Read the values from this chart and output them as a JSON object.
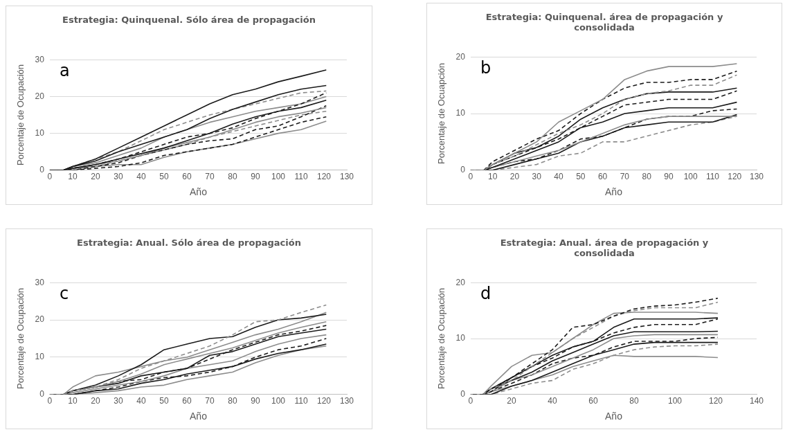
{
  "chart_data": [
    {
      "type": "line",
      "title": "Estrategia: Quinquenal. Sólo área de propagación",
      "xlabel": "Año",
      "ylabel": "Porcentaje de Ocupación",
      "annotations": [
        "a"
      ],
      "x": [
        0,
        6,
        10,
        20,
        30,
        40,
        50,
        60,
        70,
        80,
        90,
        100,
        110,
        121
      ],
      "xlim": [
        0,
        130
      ],
      "xticks": [
        0,
        10,
        20,
        30,
        40,
        50,
        60,
        70,
        80,
        90,
        100,
        110,
        120,
        130
      ],
      "ylim": [
        0,
        30
      ],
      "yticks": [
        0,
        10,
        20,
        30
      ],
      "grid": "y",
      "marker": "none",
      "series": [
        {
          "color": "#1a1a1a",
          "line_style": "solid",
          "values": [
            0,
            0,
            1,
            3,
            6,
            9,
            12,
            15,
            18,
            20.5,
            22,
            24,
            25.5,
            27.2
          ]
        },
        {
          "color": "#1a1a1a",
          "line_style": "solid",
          "values": [
            0,
            0,
            1,
            2.5,
            5,
            7,
            9,
            11,
            14,
            16.5,
            18.5,
            20.5,
            22,
            23
          ]
        },
        {
          "color": "#8c8c8c",
          "line_style": "dashed",
          "values": [
            0,
            0,
            1,
            3,
            5,
            8,
            11,
            13,
            15,
            16.5,
            18,
            19.5,
            21,
            21.5
          ]
        },
        {
          "color": "#1a1a1a",
          "line_style": "dashed",
          "values": [
            0,
            0,
            0.5,
            1.5,
            3,
            5,
            7,
            9,
            10,
            11.5,
            14,
            16,
            18,
            21
          ]
        },
        {
          "color": "#8c8c8c",
          "line_style": "solid",
          "values": [
            0,
            0,
            1,
            2,
            4,
            6,
            9,
            11,
            13,
            14.5,
            16,
            17,
            18,
            20
          ]
        },
        {
          "color": "#1a1a1a",
          "line_style": "solid",
          "values": [
            0,
            0,
            0.5,
            1.5,
            3,
            4.5,
            6,
            8,
            10,
            12.5,
            14.5,
            16,
            17,
            19
          ]
        },
        {
          "color": "#8c8c8c",
          "line_style": "solid",
          "values": [
            0,
            0,
            0.5,
            1.5,
            2.5,
            4,
            6,
            7.5,
            9,
            11,
            13,
            14.5,
            15.5,
            17
          ]
        },
        {
          "color": "#1a1a1a",
          "line_style": "dashed",
          "values": [
            0,
            0,
            0,
            1,
            2,
            4,
            5.5,
            7,
            8,
            8.5,
            11,
            12,
            14.5,
            17.5
          ]
        },
        {
          "color": "#8c8c8c",
          "line_style": "dashed",
          "values": [
            0,
            0,
            0.5,
            1,
            2.5,
            4,
            5.5,
            7,
            9,
            10.5,
            12,
            13.5,
            15,
            16
          ]
        },
        {
          "color": "#1a1a1a",
          "line_style": "dashed",
          "values": [
            0,
            0,
            0,
            0.5,
            1,
            2,
            4,
            5,
            6,
            7,
            9,
            11,
            13,
            14.5
          ]
        },
        {
          "color": "#8c8c8c",
          "line_style": "solid",
          "values": [
            0,
            0,
            0.5,
            1,
            1.5,
            1.5,
            3.5,
            5,
            6,
            7,
            8.5,
            10,
            11,
            13.3
          ]
        }
      ]
    },
    {
      "type": "line",
      "title": "Estrategia: Quinquenal. área de propagación y consolidada",
      "xlabel": "Año",
      "ylabel": "Porcentaje de Ocuapción",
      "annotations": [
        "b"
      ],
      "x": [
        0,
        6,
        10,
        20,
        30,
        40,
        50,
        60,
        70,
        80,
        90,
        100,
        110,
        121
      ],
      "xlim": [
        0,
        130
      ],
      "xticks": [
        0,
        10,
        20,
        30,
        40,
        50,
        60,
        70,
        80,
        90,
        100,
        110,
        120,
        130
      ],
      "ylim": [
        0,
        20
      ],
      "yticks": [
        0,
        10,
        20
      ],
      "grid": "y",
      "marker": "none",
      "series": [
        {
          "color": "#8c8c8c",
          "line_style": "solid",
          "values": [
            0,
            0,
            1,
            3,
            5,
            8.5,
            10.5,
            12.5,
            16,
            17.5,
            18.3,
            18.3,
            18.3,
            18.8
          ]
        },
        {
          "color": "#1a1a1a",
          "line_style": "dashed",
          "values": [
            0,
            0,
            1.5,
            3.5,
            5.5,
            7,
            10,
            12.5,
            14.5,
            15.5,
            15.5,
            16,
            16,
            17.5
          ]
        },
        {
          "color": "#8c8c8c",
          "line_style": "dashed",
          "values": [
            0,
            0,
            1,
            2.5,
            4.5,
            6.5,
            8,
            10,
            12.5,
            13.5,
            14,
            15,
            15,
            16.8
          ]
        },
        {
          "color": "#1a1a1a",
          "line_style": "solid",
          "values": [
            0,
            0,
            1,
            3,
            4,
            6,
            9,
            11,
            12.5,
            13.5,
            13.8,
            13.8,
            13.8,
            14.5
          ]
        },
        {
          "color": "#1a1a1a",
          "line_style": "dashed",
          "values": [
            0,
            0,
            1,
            2.5,
            4,
            5.5,
            7.5,
            9.5,
            11.5,
            12,
            12.5,
            12.5,
            12.5,
            14
          ]
        },
        {
          "color": "#1a1a1a",
          "line_style": "solid",
          "values": [
            0,
            0,
            0.5,
            2,
            3.5,
            5,
            7.5,
            8.5,
            10,
            10.5,
            11,
            11,
            11,
            12
          ]
        },
        {
          "color": "#8c8c8c",
          "line_style": "solid",
          "values": [
            0,
            0,
            0.5,
            1.5,
            2.5,
            3.5,
            5,
            6.5,
            8,
            9,
            9.5,
            9.5,
            9.5,
            9.5
          ]
        },
        {
          "color": "#1a1a1a",
          "line_style": "dashed",
          "values": [
            0,
            0,
            0.5,
            1.5,
            2,
            3.5,
            5.5,
            6,
            7.5,
            9,
            9.5,
            9.5,
            10.5,
            10.8
          ]
        },
        {
          "color": "#1a1a1a",
          "line_style": "solid",
          "values": [
            0,
            0,
            0,
            1,
            2,
            3,
            5,
            6,
            7.5,
            8,
            8.5,
            8.5,
            8.5,
            9.8
          ]
        },
        {
          "color": "#8c8c8c",
          "line_style": "dashed",
          "values": [
            0,
            0,
            0,
            0.5,
            1,
            2.5,
            3,
            5,
            5,
            6,
            7,
            8,
            8.5,
            9.5
          ]
        }
      ]
    },
    {
      "type": "line",
      "title": "Estrategia: Anual. Sólo área de propagación",
      "xlabel": "Año",
      "ylabel": "Porcentaje de Ocupación",
      "annotations": [
        "c"
      ],
      "x": [
        0,
        6,
        10,
        20,
        30,
        40,
        50,
        60,
        70,
        80,
        90,
        100,
        110,
        121
      ],
      "xlim": [
        0,
        130
      ],
      "xticks": [
        0,
        10,
        20,
        30,
        40,
        50,
        60,
        70,
        80,
        90,
        100,
        110,
        120,
        130
      ],
      "ylim": [
        0,
        30
      ],
      "yticks": [
        0,
        10,
        20,
        30
      ],
      "grid": "y",
      "marker": "none",
      "series": [
        {
          "color": "#8c8c8c",
          "line_style": "dashed",
          "values": [
            0,
            0,
            1,
            2,
            4,
            7,
            9,
            11,
            13,
            16,
            19.5,
            20,
            22,
            24
          ]
        },
        {
          "color": "#1a1a1a",
          "line_style": "solid",
          "values": [
            0,
            0,
            1,
            2.5,
            5,
            8,
            12,
            13.5,
            15,
            15.5,
            18,
            20,
            20.5,
            21.5
          ]
        },
        {
          "color": "#8c8c8c",
          "line_style": "solid",
          "values": [
            0,
            0,
            2,
            5,
            6,
            7.5,
            9,
            10,
            12,
            14,
            16,
            17.5,
            19.5,
            22
          ]
        },
        {
          "color": "#8c8c8c",
          "line_style": "solid",
          "values": [
            0,
            0,
            1,
            2,
            3.5,
            5.5,
            8,
            9.5,
            11,
            12.5,
            14.5,
            16.5,
            18,
            19.5
          ]
        },
        {
          "color": "#1a1a1a",
          "line_style": "dashed",
          "values": [
            0,
            0,
            1,
            2,
            3.5,
            4,
            6,
            7,
            9.5,
            12,
            14,
            16,
            17,
            18.5
          ]
        },
        {
          "color": "#1a1a1a",
          "line_style": "solid",
          "values": [
            0,
            0,
            1,
            2,
            3,
            5,
            6,
            7,
            10.5,
            11.5,
            13.5,
            15.5,
            16.5,
            17.5
          ]
        },
        {
          "color": "#8c8c8c",
          "line_style": "solid",
          "values": [
            0,
            0,
            0.5,
            1.5,
            2.5,
            3.5,
            5,
            7,
            8,
            9,
            11.5,
            13.5,
            15,
            16
          ]
        },
        {
          "color": "#1a1a1a",
          "line_style": "dashed",
          "values": [
            0,
            0,
            0,
            1,
            2,
            3.5,
            4.5,
            5,
            6,
            7.5,
            10,
            12,
            13,
            15
          ]
        },
        {
          "color": "#1a1a1a",
          "line_style": "solid",
          "values": [
            0,
            0,
            0,
            1,
            1.5,
            3,
            4,
            5.5,
            6.5,
            7.5,
            9.5,
            11,
            12,
            13.5
          ]
        },
        {
          "color": "#8c8c8c",
          "line_style": "solid",
          "values": [
            0,
            0,
            0,
            0.5,
            1,
            2,
            2.5,
            4,
            5,
            6,
            8.5,
            10.5,
            12,
            13
          ]
        }
      ]
    },
    {
      "type": "line",
      "title": "Estrategia: Anual. área de propagación y consolidada",
      "xlabel": "Año",
      "ylabel": "Porcentaje de Ocupación",
      "annotations": [
        "d"
      ],
      "x": [
        0,
        6,
        10,
        20,
        30,
        40,
        50,
        60,
        70,
        80,
        90,
        100,
        110,
        121
      ],
      "xlim": [
        0,
        140
      ],
      "xticks": [
        0,
        20,
        40,
        60,
        80,
        100,
        120,
        140
      ],
      "ylim": [
        0,
        20
      ],
      "yticks": [
        0,
        10,
        20
      ],
      "grid": "y",
      "marker": "none",
      "series": [
        {
          "color": "#1a1a1a",
          "line_style": "dashed",
          "values": [
            0,
            0,
            1,
            3,
            5.5,
            8,
            12,
            12.5,
            14,
            15.3,
            15.8,
            16,
            16.5,
            17.2
          ]
        },
        {
          "color": "#8c8c8c",
          "line_style": "dashed",
          "values": [
            0,
            0,
            1,
            2.5,
            5,
            7.5,
            10,
            12,
            14,
            15,
            15.5,
            15.5,
            15.5,
            16.5
          ]
        },
        {
          "color": "#8c8c8c",
          "line_style": "solid",
          "values": [
            0,
            0,
            1.5,
            5,
            7,
            7.5,
            10,
            12.5,
            14.5,
            14.7,
            14.7,
            14.7,
            14.7,
            14.5
          ]
        },
        {
          "color": "#1a1a1a",
          "line_style": "solid",
          "values": [
            0,
            0,
            1,
            3,
            5,
            7,
            8.5,
            9.5,
            12,
            13.5,
            13.5,
            13.5,
            13.5,
            13.7
          ]
        },
        {
          "color": "#1a1a1a",
          "line_style": "dashed",
          "values": [
            0,
            0,
            0.5,
            3,
            5,
            6.5,
            8.5,
            9.5,
            11,
            12,
            12.5,
            12.5,
            12.5,
            13.5
          ]
        },
        {
          "color": "#1a1a1a",
          "line_style": "solid",
          "values": [
            0,
            0,
            1,
            2.5,
            4,
            6,
            7.5,
            9,
            10.5,
            11.2,
            11.2,
            11.2,
            11.2,
            11.3
          ]
        },
        {
          "color": "#8c8c8c",
          "line_style": "solid",
          "values": [
            0,
            0,
            0.5,
            2.5,
            3.5,
            5,
            6.5,
            8,
            10,
            10.5,
            10.7,
            10.7,
            10.7,
            10.7
          ]
        },
        {
          "color": "#1a1a1a",
          "line_style": "solid",
          "values": [
            0,
            0,
            0,
            1.5,
            2.5,
            4,
            5.5,
            7,
            8,
            9,
            9.3,
            9.3,
            9.3,
            9.3
          ]
        },
        {
          "color": "#8c8c8c",
          "line_style": "dashed",
          "values": [
            0,
            0,
            0,
            1,
            2,
            2.5,
            4.5,
            5.5,
            7,
            8,
            8.5,
            8.7,
            8.7,
            9
          ]
        },
        {
          "color": "#8c8c8c",
          "line_style": "solid",
          "values": [
            0,
            0,
            0.5,
            1.5,
            2.5,
            3.5,
            5,
            6,
            7,
            6.8,
            6.8,
            6.8,
            6.8,
            6.6
          ]
        },
        {
          "color": "#1a1a1a",
          "line_style": "dashed",
          "values": [
            0,
            0,
            0.5,
            2,
            3.5,
            5.5,
            6.5,
            7,
            8.5,
            9.5,
            9.5,
            9.5,
            10,
            10.2
          ]
        }
      ]
    }
  ]
}
